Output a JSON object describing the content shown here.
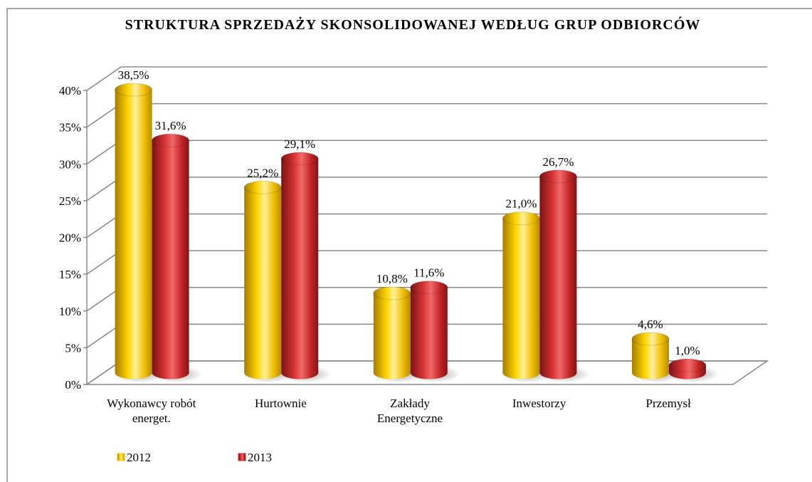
{
  "chart_data": {
    "type": "bar3d",
    "title": "STRUKTURA SPRZEDAŻY SKONSOLIDOWANEJ WEDŁUG GRUP ODBIORCÓW",
    "categories": [
      "Wykonawcy robót energet.",
      "Hurtownie",
      "Zakłady Energetyczne",
      "Inwestorzy",
      "Przemysł"
    ],
    "series": [
      {
        "name": "2012",
        "color": "#f2c200",
        "values": [
          38.5,
          25.2,
          10.8,
          21.0,
          4.6
        ],
        "value_labels": [
          "38,5%",
          "25,2%",
          "10,8%",
          "21,0%",
          "4,6%"
        ]
      },
      {
        "name": "2013",
        "color": "#c8282a",
        "values": [
          31.6,
          29.1,
          11.6,
          26.7,
          1.0
        ],
        "value_labels": [
          "31,6%",
          "29,1%",
          "11,6%",
          "26,7%",
          "1,0%"
        ]
      }
    ],
    "ylim": [
      0,
      40
    ],
    "yticks": [
      {
        "value": 0,
        "label": "0%"
      },
      {
        "value": 5,
        "label": "5%"
      },
      {
        "value": 10,
        "label": "10%"
      },
      {
        "value": 15,
        "label": "15%"
      },
      {
        "value": 20,
        "label": "20%"
      },
      {
        "value": 25,
        "label": "25%"
      },
      {
        "value": 30,
        "label": "30%"
      },
      {
        "value": 35,
        "label": "35%"
      },
      {
        "value": 40,
        "label": "40%"
      }
    ],
    "grid": true,
    "legend": "bottom-left"
  }
}
